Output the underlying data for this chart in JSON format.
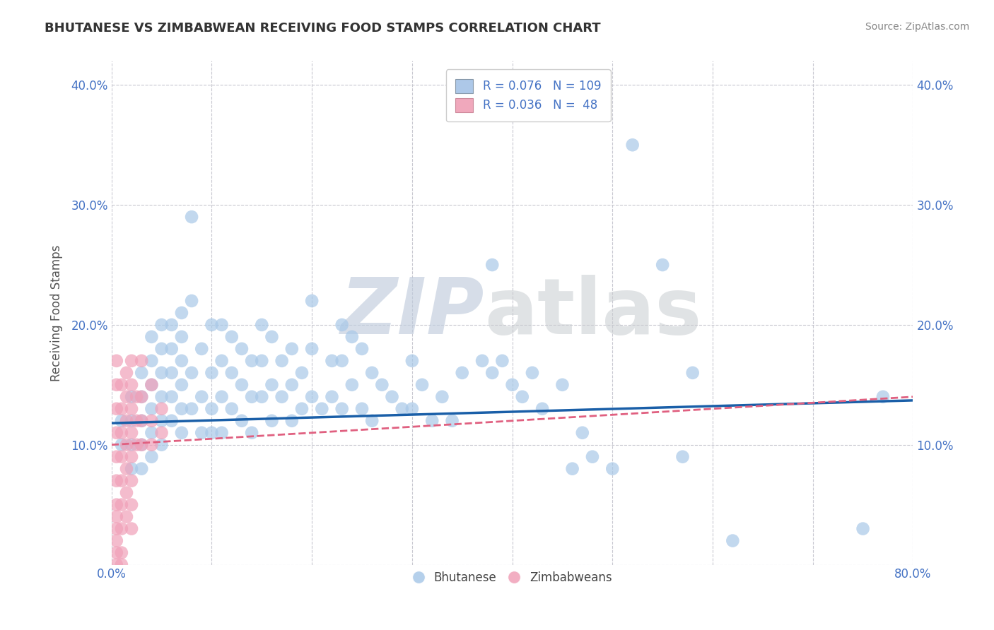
{
  "title": "BHUTANESE VS ZIMBABWEAN RECEIVING FOOD STAMPS CORRELATION CHART",
  "source": "Source: ZipAtlas.com",
  "ylabel": "Receiving Food Stamps",
  "xlim": [
    0.0,
    0.8
  ],
  "ylim": [
    0.0,
    0.42
  ],
  "x_ticks": [
    0.0,
    0.1,
    0.2,
    0.3,
    0.4,
    0.5,
    0.6,
    0.7,
    0.8
  ],
  "y_ticks": [
    0.0,
    0.1,
    0.2,
    0.3,
    0.4
  ],
  "x_tick_labels": [
    "0.0%",
    "",
    "",
    "",
    "",
    "",
    "",
    "",
    "80.0%"
  ],
  "y_tick_labels_left": [
    "",
    "10.0%",
    "20.0%",
    "30.0%",
    "40.0%"
  ],
  "y_tick_labels_right": [
    "",
    "10.0%",
    "20.0%",
    "30.0%",
    "40.0%"
  ],
  "background_color": "#ffffff",
  "grid_color": "#c8c8d0",
  "blue_color": "#a8c8e8",
  "pink_color": "#f0a0b8",
  "blue_line_color": "#1a5fa8",
  "pink_line_color": "#e06080",
  "title_color": "#333333",
  "label_color": "#4472c4",
  "legend_blue_face": "#adc8e8",
  "legend_pink_face": "#f0a8bc",
  "blue_scatter": [
    [
      0.01,
      0.12
    ],
    [
      0.01,
      0.1
    ],
    [
      0.02,
      0.14
    ],
    [
      0.02,
      0.12
    ],
    [
      0.02,
      0.1
    ],
    [
      0.02,
      0.08
    ],
    [
      0.03,
      0.16
    ],
    [
      0.03,
      0.14
    ],
    [
      0.03,
      0.12
    ],
    [
      0.03,
      0.1
    ],
    [
      0.03,
      0.08
    ],
    [
      0.04,
      0.19
    ],
    [
      0.04,
      0.17
    ],
    [
      0.04,
      0.15
    ],
    [
      0.04,
      0.13
    ],
    [
      0.04,
      0.11
    ],
    [
      0.04,
      0.09
    ],
    [
      0.05,
      0.2
    ],
    [
      0.05,
      0.18
    ],
    [
      0.05,
      0.16
    ],
    [
      0.05,
      0.14
    ],
    [
      0.05,
      0.12
    ],
    [
      0.05,
      0.1
    ],
    [
      0.06,
      0.2
    ],
    [
      0.06,
      0.18
    ],
    [
      0.06,
      0.16
    ],
    [
      0.06,
      0.14
    ],
    [
      0.06,
      0.12
    ],
    [
      0.07,
      0.21
    ],
    [
      0.07,
      0.19
    ],
    [
      0.07,
      0.17
    ],
    [
      0.07,
      0.15
    ],
    [
      0.07,
      0.13
    ],
    [
      0.07,
      0.11
    ],
    [
      0.08,
      0.29
    ],
    [
      0.08,
      0.22
    ],
    [
      0.08,
      0.16
    ],
    [
      0.08,
      0.13
    ],
    [
      0.09,
      0.18
    ],
    [
      0.09,
      0.14
    ],
    [
      0.09,
      0.11
    ],
    [
      0.1,
      0.2
    ],
    [
      0.1,
      0.16
    ],
    [
      0.1,
      0.13
    ],
    [
      0.1,
      0.11
    ],
    [
      0.11,
      0.2
    ],
    [
      0.11,
      0.17
    ],
    [
      0.11,
      0.14
    ],
    [
      0.11,
      0.11
    ],
    [
      0.12,
      0.19
    ],
    [
      0.12,
      0.16
    ],
    [
      0.12,
      0.13
    ],
    [
      0.13,
      0.18
    ],
    [
      0.13,
      0.15
    ],
    [
      0.13,
      0.12
    ],
    [
      0.14,
      0.17
    ],
    [
      0.14,
      0.14
    ],
    [
      0.14,
      0.11
    ],
    [
      0.15,
      0.2
    ],
    [
      0.15,
      0.17
    ],
    [
      0.15,
      0.14
    ],
    [
      0.16,
      0.19
    ],
    [
      0.16,
      0.15
    ],
    [
      0.16,
      0.12
    ],
    [
      0.17,
      0.17
    ],
    [
      0.17,
      0.14
    ],
    [
      0.18,
      0.18
    ],
    [
      0.18,
      0.15
    ],
    [
      0.18,
      0.12
    ],
    [
      0.19,
      0.16
    ],
    [
      0.19,
      0.13
    ],
    [
      0.2,
      0.22
    ],
    [
      0.2,
      0.18
    ],
    [
      0.2,
      0.14
    ],
    [
      0.21,
      0.13
    ],
    [
      0.22,
      0.17
    ],
    [
      0.22,
      0.14
    ],
    [
      0.23,
      0.2
    ],
    [
      0.23,
      0.17
    ],
    [
      0.23,
      0.13
    ],
    [
      0.24,
      0.19
    ],
    [
      0.24,
      0.15
    ],
    [
      0.25,
      0.18
    ],
    [
      0.25,
      0.13
    ],
    [
      0.26,
      0.16
    ],
    [
      0.26,
      0.12
    ],
    [
      0.27,
      0.15
    ],
    [
      0.28,
      0.14
    ],
    [
      0.29,
      0.13
    ],
    [
      0.3,
      0.17
    ],
    [
      0.3,
      0.13
    ],
    [
      0.31,
      0.15
    ],
    [
      0.32,
      0.12
    ],
    [
      0.33,
      0.14
    ],
    [
      0.34,
      0.12
    ],
    [
      0.35,
      0.16
    ],
    [
      0.37,
      0.17
    ],
    [
      0.38,
      0.25
    ],
    [
      0.38,
      0.16
    ],
    [
      0.39,
      0.17
    ],
    [
      0.4,
      0.15
    ],
    [
      0.41,
      0.14
    ],
    [
      0.42,
      0.16
    ],
    [
      0.43,
      0.13
    ],
    [
      0.45,
      0.15
    ],
    [
      0.46,
      0.08
    ],
    [
      0.47,
      0.11
    ],
    [
      0.48,
      0.09
    ],
    [
      0.5,
      0.08
    ],
    [
      0.52,
      0.35
    ],
    [
      0.55,
      0.25
    ],
    [
      0.57,
      0.09
    ],
    [
      0.58,
      0.16
    ],
    [
      0.62,
      0.02
    ],
    [
      0.75,
      0.03
    ],
    [
      0.77,
      0.14
    ]
  ],
  "pink_scatter": [
    [
      0.005,
      0.17
    ],
    [
      0.005,
      0.15
    ],
    [
      0.005,
      0.13
    ],
    [
      0.005,
      0.11
    ],
    [
      0.005,
      0.09
    ],
    [
      0.005,
      0.07
    ],
    [
      0.005,
      0.05
    ],
    [
      0.005,
      0.04
    ],
    [
      0.005,
      0.03
    ],
    [
      0.005,
      0.02
    ],
    [
      0.005,
      0.01
    ],
    [
      0.005,
      0.0
    ],
    [
      0.01,
      0.15
    ],
    [
      0.01,
      0.13
    ],
    [
      0.01,
      0.11
    ],
    [
      0.01,
      0.09
    ],
    [
      0.01,
      0.07
    ],
    [
      0.01,
      0.05
    ],
    [
      0.01,
      0.03
    ],
    [
      0.01,
      0.01
    ],
    [
      0.01,
      0.0
    ],
    [
      0.015,
      0.16
    ],
    [
      0.015,
      0.14
    ],
    [
      0.015,
      0.12
    ],
    [
      0.015,
      0.1
    ],
    [
      0.015,
      0.08
    ],
    [
      0.015,
      0.06
    ],
    [
      0.015,
      0.04
    ],
    [
      0.02,
      0.17
    ],
    [
      0.02,
      0.15
    ],
    [
      0.02,
      0.13
    ],
    [
      0.02,
      0.11
    ],
    [
      0.02,
      0.09
    ],
    [
      0.02,
      0.07
    ],
    [
      0.02,
      0.05
    ],
    [
      0.02,
      0.03
    ],
    [
      0.025,
      0.14
    ],
    [
      0.025,
      0.12
    ],
    [
      0.025,
      0.1
    ],
    [
      0.03,
      0.17
    ],
    [
      0.03,
      0.14
    ],
    [
      0.03,
      0.12
    ],
    [
      0.03,
      0.1
    ],
    [
      0.04,
      0.15
    ],
    [
      0.04,
      0.12
    ],
    [
      0.04,
      0.1
    ],
    [
      0.05,
      0.13
    ],
    [
      0.05,
      0.11
    ]
  ],
  "blue_trendline": [
    [
      0.0,
      0.118
    ],
    [
      0.8,
      0.137
    ]
  ],
  "pink_trendline": [
    [
      0.0,
      0.1
    ],
    [
      0.8,
      0.14
    ]
  ]
}
